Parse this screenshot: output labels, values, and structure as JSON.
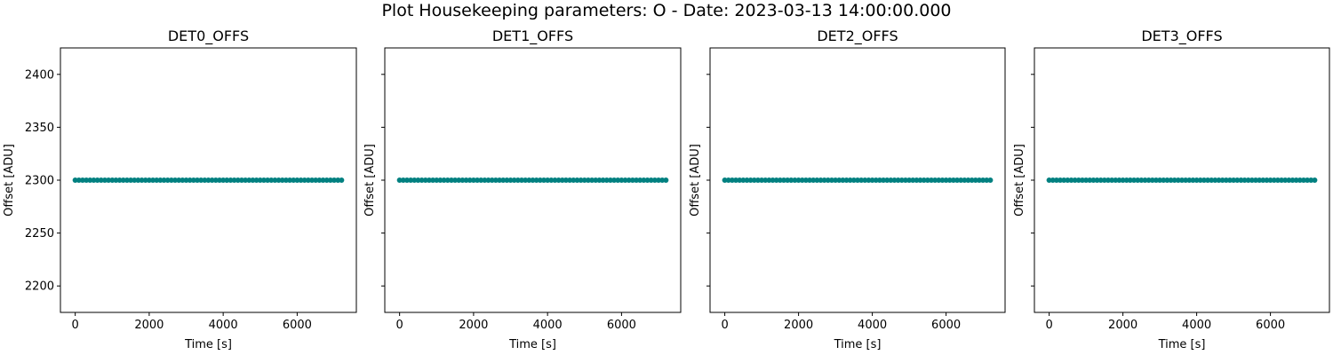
{
  "figure": {
    "title": "Plot Housekeeping parameters: O - Date: 2023-03-13 14:00:00.000"
  },
  "colors": {
    "marker": "#008080"
  },
  "chart_data": [
    {
      "type": "scatter",
      "title": "DET0_OFFS",
      "xlabel": "Time [s]",
      "ylabel": "Offset [ADU]",
      "xlim": [
        -400,
        7600
      ],
      "ylim": [
        2175,
        2425
      ],
      "xticks": [
        0,
        2000,
        4000,
        6000
      ],
      "yticks": [
        2200,
        2250,
        2300,
        2350,
        2400
      ],
      "show_ytick_labels": true,
      "grid": false,
      "series": [
        {
          "x_start": 0,
          "x_step": 100,
          "x_end": 7200,
          "y": 2300
        }
      ]
    },
    {
      "type": "scatter",
      "title": "DET1_OFFS",
      "xlabel": "Time [s]",
      "ylabel": "Offset [ADU]",
      "xlim": [
        -400,
        7600
      ],
      "ylim": [
        2175,
        2425
      ],
      "xticks": [
        0,
        2000,
        4000,
        6000
      ],
      "yticks": [
        2200,
        2250,
        2300,
        2350,
        2400
      ],
      "show_ytick_labels": false,
      "grid": false,
      "series": [
        {
          "x_start": 0,
          "x_step": 100,
          "x_end": 7200,
          "y": 2300
        }
      ]
    },
    {
      "type": "scatter",
      "title": "DET2_OFFS",
      "xlabel": "Time [s]",
      "ylabel": "Offset [ADU]",
      "xlim": [
        -400,
        7600
      ],
      "ylim": [
        2175,
        2425
      ],
      "xticks": [
        0,
        2000,
        4000,
        6000
      ],
      "yticks": [
        2200,
        2250,
        2300,
        2350,
        2400
      ],
      "show_ytick_labels": false,
      "grid": false,
      "series": [
        {
          "x_start": 0,
          "x_step": 100,
          "x_end": 7200,
          "y": 2300
        }
      ]
    },
    {
      "type": "scatter",
      "title": "DET3_OFFS",
      "xlabel": "Time [s]",
      "ylabel": "Offset [ADU]",
      "xlim": [
        -400,
        7600
      ],
      "ylim": [
        2175,
        2425
      ],
      "xticks": [
        0,
        2000,
        4000,
        6000
      ],
      "yticks": [
        2200,
        2250,
        2300,
        2350,
        2400
      ],
      "show_ytick_labels": false,
      "grid": false,
      "series": [
        {
          "x_start": 0,
          "x_step": 100,
          "x_end": 7200,
          "y": 2300
        }
      ]
    }
  ]
}
